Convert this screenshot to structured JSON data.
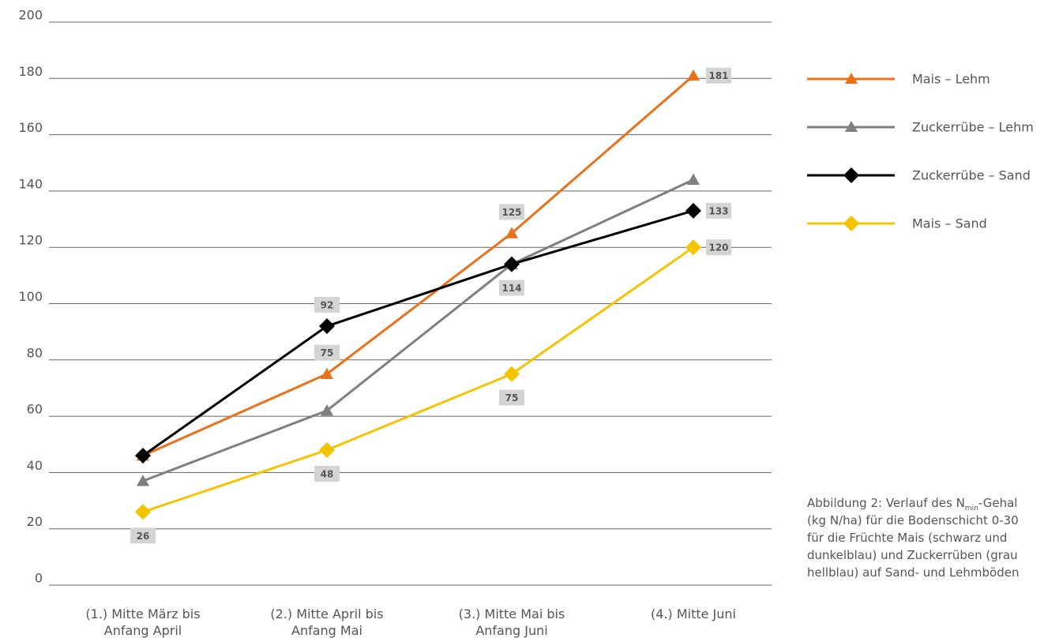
{
  "chart_data": {
    "type": "line",
    "categories": [
      "(1.) Mitte März bis\nAnfang April",
      "(2.) Mitte April bis\nAnfang Mai",
      "(3.) Mitte Mai bis\nAnfang Juni",
      "(4.) Mitte Juni"
    ],
    "series": [
      {
        "name": "Mais – Lehm",
        "color": "#e8711a",
        "marker": "triangle",
        "values": [
          46,
          75,
          125,
          181
        ],
        "value_labels": [
          null,
          "75",
          "125",
          "181"
        ]
      },
      {
        "name": "Zuckerrübe – Lehm",
        "color": "#7f7f7f",
        "marker": "triangle",
        "values": [
          37,
          62,
          114,
          144
        ],
        "value_labels": [
          null,
          null,
          null,
          null
        ]
      },
      {
        "name": "Zuckerrübe – Sand",
        "color": "#000000",
        "marker": "diamond",
        "values": [
          46,
          92,
          114,
          133
        ],
        "value_labels": [
          null,
          "92",
          "114",
          "133"
        ]
      },
      {
        "name": "Mais – Sand",
        "color": "#f5c400",
        "marker": "diamond",
        "values": [
          26,
          48,
          75,
          120
        ],
        "value_labels": [
          "26",
          "48",
          "75",
          "120"
        ]
      }
    ],
    "ylim": [
      0,
      200
    ],
    "yticks": [
      0,
      20,
      40,
      60,
      80,
      100,
      120,
      140,
      160,
      180,
      200
    ],
    "grid": true,
    "legend": "right",
    "caption": {
      "start": "Abbildung 2: Verlauf des N",
      "subscript": "min",
      "end": "-Gehal",
      "lines": [
        "(kg N/ha) für die Bodenschicht 0-30",
        "für die Früchte Mais (schwarz und",
        "dunkelblau) und Zuckerrüben (grau",
        "hellblau) auf Sand- und Lehmböden"
      ]
    }
  }
}
